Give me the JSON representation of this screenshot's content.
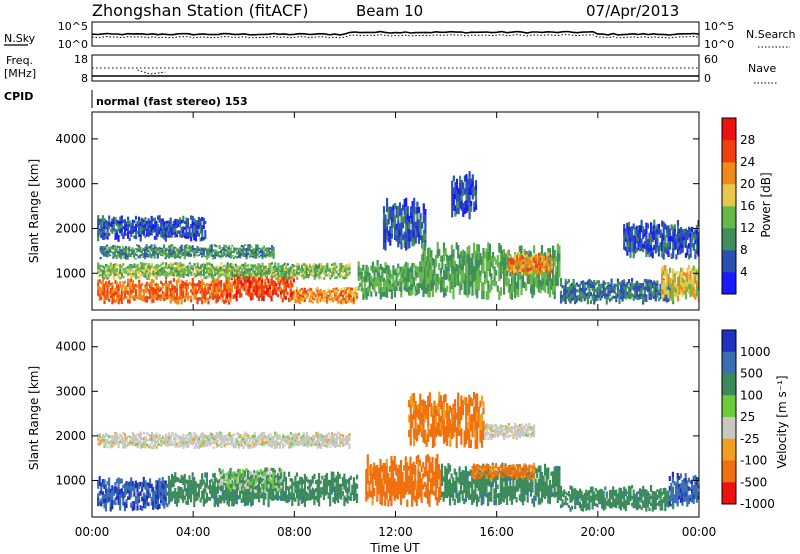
{
  "header": {
    "station": "Zhongshan Station (fitACF)",
    "beam": "Beam 10",
    "date": "07/Apr/2013"
  },
  "aux": {
    "nsky_label": "N.Sky",
    "nsky_ticks": [
      "10^5",
      "10^0"
    ],
    "nsearch_label": "N.Search",
    "nsearch_ticks": [
      "10^5",
      "10^0"
    ],
    "freq_label_1": "Freq.",
    "freq_label_2": "[MHz]",
    "freq_ticks": [
      "18",
      "8"
    ],
    "nave_label": "Nave",
    "nave_ticks": [
      "60",
      "0"
    ],
    "cpid_label": "CPID",
    "cpid_text": "normal (fast stereo) 153"
  },
  "chart_data": [
    {
      "type": "heatmap",
      "name": "power",
      "ylabel": "Slant Range [km]",
      "yticks": [
        "1000",
        "2000",
        "3000",
        "4000"
      ],
      "ylim": [
        180,
        4600
      ],
      "colorbar_label": "Power [dB]",
      "colorbar_ticks": [
        "4",
        "8",
        "12",
        "16",
        "20",
        "24",
        "28"
      ],
      "colors": [
        "#1a1aff",
        "#2b4fb3",
        "#3f8f5a",
        "#66b84a",
        "#e6c84a",
        "#f08a1a",
        "#f04010",
        "#ee1111"
      ],
      "regions": [
        {
          "t0": 0.2,
          "t1": 5.5,
          "r0": 300,
          "r1": 900,
          "v": 26
        },
        {
          "t0": 5.3,
          "t1": 8.0,
          "r0": 350,
          "r1": 1100,
          "v": 28
        },
        {
          "t0": 8.0,
          "t1": 10.5,
          "r0": 300,
          "r1": 700,
          "v": 24
        },
        {
          "t0": 0.2,
          "t1": 10.2,
          "r0": 850,
          "r1": 1250,
          "v": 16
        },
        {
          "t0": 0.3,
          "t1": 7.2,
          "r0": 1300,
          "r1": 1650,
          "v": 12
        },
        {
          "t0": 0.2,
          "t1": 4.5,
          "r0": 1700,
          "r1": 2300,
          "v": 8
        },
        {
          "t0": 10.5,
          "t1": 13.5,
          "r0": 400,
          "r1": 1300,
          "v": 14
        },
        {
          "t0": 11.5,
          "t1": 13.2,
          "r0": 1500,
          "r1": 2700,
          "v": 8
        },
        {
          "t0": 13.0,
          "t1": 18.5,
          "r0": 400,
          "r1": 1700,
          "v": 14
        },
        {
          "t0": 16.4,
          "t1": 18.2,
          "r0": 950,
          "r1": 1500,
          "v": 24
        },
        {
          "t0": 18.5,
          "t1": 23.0,
          "r0": 300,
          "r1": 900,
          "v": 10
        },
        {
          "t0": 22.5,
          "t1": 24.0,
          "r0": 350,
          "r1": 1200,
          "v": 20
        },
        {
          "t0": 21.0,
          "t1": 24.0,
          "r0": 1300,
          "r1": 2200,
          "v": 8
        },
        {
          "t0": 14.2,
          "t1": 15.2,
          "r0": 2200,
          "r1": 3300,
          "v": 8
        }
      ]
    },
    {
      "type": "heatmap",
      "name": "velocity",
      "ylabel": "Slant Range [km]",
      "yticks": [
        "1000",
        "2000",
        "3000",
        "4000"
      ],
      "ylim": [
        180,
        4600
      ],
      "colorbar_label": "Velocity [m s⁻¹]",
      "colorbar_ticks": [
        "1000",
        "500",
        "100",
        "25",
        "-25",
        "-100",
        "-500",
        "-1000"
      ],
      "colors": [
        "#2030c0",
        "#3a6fb0",
        "#3a8a5a",
        "#6acc3a",
        "#c8c8c0",
        "#f0a020",
        "#f07010",
        "#ee1111"
      ],
      "regions": [
        {
          "t0": 0.2,
          "t1": 3.0,
          "r0": 300,
          "r1": 1100,
          "v": 700
        },
        {
          "t0": 3.0,
          "t1": 10.5,
          "r0": 400,
          "r1": 1200,
          "v": 200
        },
        {
          "t0": 5.0,
          "t1": 7.5,
          "r0": 700,
          "r1": 1300,
          "v": 50
        },
        {
          "t0": 0.2,
          "t1": 10.2,
          "r0": 1700,
          "r1": 2100,
          "v": 0
        },
        {
          "t0": 10.8,
          "t1": 13.8,
          "r0": 400,
          "r1": 1600,
          "v": -200
        },
        {
          "t0": 12.5,
          "t1": 15.5,
          "r0": 1700,
          "r1": 3000,
          "v": -150
        },
        {
          "t0": 13.8,
          "t1": 18.5,
          "r0": 400,
          "r1": 1400,
          "v": 200
        },
        {
          "t0": 15.0,
          "t1": 17.5,
          "r0": 1000,
          "r1": 1400,
          "v": -150
        },
        {
          "t0": 18.5,
          "t1": 23.0,
          "r0": 300,
          "r1": 900,
          "v": 200
        },
        {
          "t0": 22.8,
          "t1": 24.0,
          "r0": 400,
          "r1": 1200,
          "v": 600
        },
        {
          "t0": 15.5,
          "t1": 17.5,
          "r0": 1900,
          "r1": 2300,
          "v": 0
        }
      ]
    }
  ],
  "xaxis": {
    "label": "Time UT",
    "ticks": [
      "00:00",
      "04:00",
      "08:00",
      "12:00",
      "16:00",
      "20:00",
      "00:00"
    ],
    "range": [
      0,
      24
    ]
  }
}
